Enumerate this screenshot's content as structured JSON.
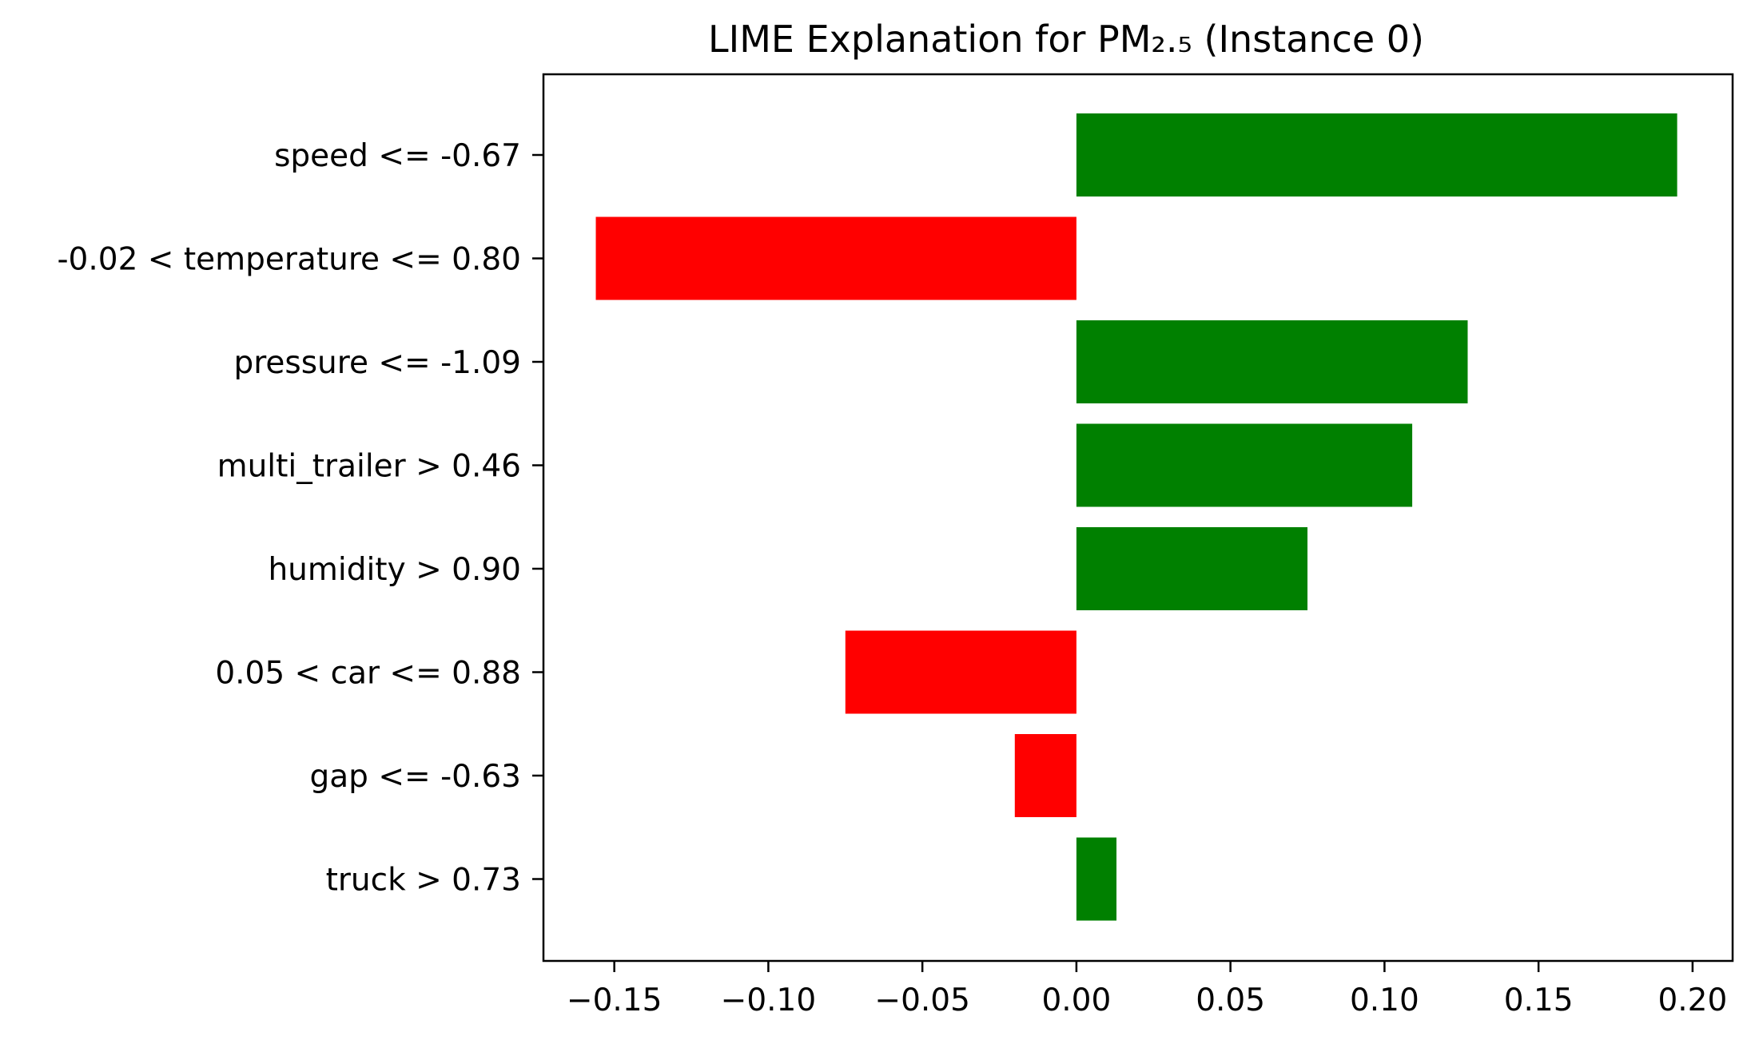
{
  "chart_data": {
    "type": "bar",
    "orientation": "horizontal",
    "title": "LIME Explanation for PM₂.₅ (Instance 0)",
    "xlabel": "",
    "ylabel": "",
    "categories": [
      "speed <= -0.67",
      "-0.02 < temperature <= 0.80",
      "pressure <= -1.09",
      "multi_trailer > 0.46",
      "humidity > 0.90",
      "0.05 < car <= 0.88",
      "gap <= -0.63",
      "truck > 0.73"
    ],
    "values": [
      0.195,
      -0.156,
      0.127,
      0.109,
      0.075,
      -0.075,
      -0.02,
      0.013
    ],
    "xlim": [
      -0.173,
      0.213
    ],
    "xticks": [
      -0.15,
      -0.1,
      -0.05,
      0.0,
      0.05,
      0.1,
      0.15,
      0.2
    ],
    "xtick_labels": [
      "−0.15",
      "−0.10",
      "−0.05",
      "0.00",
      "0.05",
      "0.10",
      "0.15",
      "0.20"
    ],
    "colors": {
      "positive": "#008000",
      "negative": "#ff0000"
    },
    "grid": false,
    "legend": "none"
  }
}
